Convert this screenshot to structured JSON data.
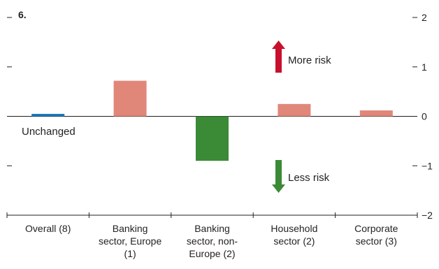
{
  "chart_data": {
    "type": "bar",
    "panel_label": "6.",
    "categories": [
      [
        "Overall (8)"
      ],
      [
        "Banking",
        "sector, Europe",
        "(1)"
      ],
      [
        "Banking",
        "sector, non-",
        "Europe (2)"
      ],
      [
        "Household",
        "sector (2)"
      ],
      [
        "Corporate",
        "sector (3)"
      ]
    ],
    "values": [
      0.05,
      0.72,
      -0.9,
      0.25,
      0.12
    ],
    "bar_colors": [
      "#1a7ab8",
      "#e0877a",
      "#3a8a36",
      "#e0877a",
      "#e0877a"
    ],
    "ylim": [
      -2,
      2
    ],
    "yticks": [
      2,
      1,
      0,
      -1,
      -2
    ],
    "ytick_labels": [
      "2",
      "1",
      "0",
      "−1",
      "−2"
    ],
    "annotations": {
      "unchanged": "Unchanged",
      "more_risk": "More risk",
      "less_risk": "Less risk"
    },
    "arrow_colors": {
      "up": "#c8102e",
      "down": "#3a8a36"
    },
    "grid": false,
    "legend": "none"
  }
}
